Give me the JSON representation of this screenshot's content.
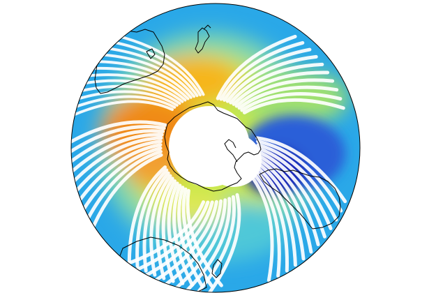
{
  "map": {
    "projection": "south-polar-orthographic",
    "center": "south-pole",
    "colormap": "jet",
    "land_outline_color": "#000000",
    "missing_data_color": "#ffffff",
    "ocean_background_color": "#2aa8e8",
    "polar_gap_color": "#ffffff",
    "features": [
      {
        "name": "antarctica-outline",
        "type": "coastline"
      },
      {
        "name": "australia-outline",
        "type": "coastline"
      },
      {
        "name": "new-zealand-outline",
        "type": "coastline"
      },
      {
        "name": "south-america-outline",
        "type": "coastline"
      },
      {
        "name": "africa-outline",
        "type": "coastline"
      }
    ],
    "field_regions": [
      {
        "name": "high-band-pacific",
        "level": 0.85,
        "color": "#f08a14"
      },
      {
        "name": "high-band-indian",
        "level": 0.75,
        "color": "#f6b51e"
      },
      {
        "name": "low-anomaly-atlantic",
        "level": 0.08,
        "color": "#1a2bb8"
      },
      {
        "name": "mid-band",
        "level": 0.55,
        "color": "#c9e84a"
      },
      {
        "name": "outer-background",
        "level": 0.35,
        "color": "#2aa8e8"
      }
    ]
  }
}
